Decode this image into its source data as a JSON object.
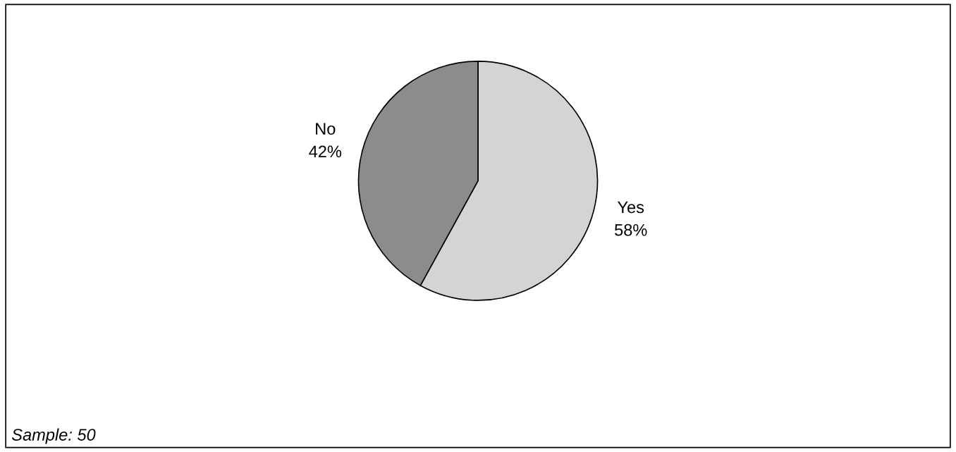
{
  "chart_data": {
    "type": "pie",
    "categories": [
      "Yes",
      "No"
    ],
    "values": [
      58,
      42
    ],
    "colors": [
      "#d4d4d4",
      "#8c8c8c"
    ],
    "value_labels": [
      "58%",
      "42%"
    ],
    "annotations": [
      "Sample: 50"
    ],
    "legend": false
  }
}
